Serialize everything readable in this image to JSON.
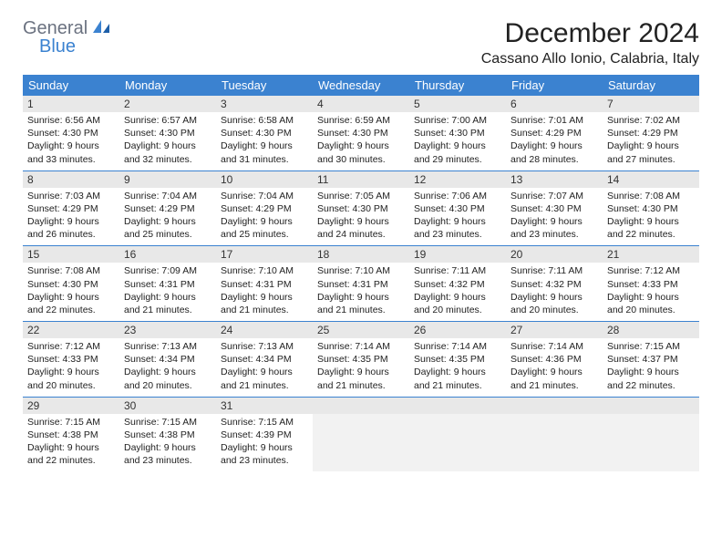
{
  "logo": {
    "general": "General",
    "blue": "Blue"
  },
  "header": {
    "title": "December 2024",
    "location": "Cassano Allo Ionio, Calabria, Italy"
  },
  "colors": {
    "brand_blue": "#3b82d0",
    "header_bg": "#3b82d0",
    "day_num_bg": "#e8e8e8",
    "empty_bg": "#f2f2f2",
    "text": "#222222"
  },
  "weekdays": [
    "Sunday",
    "Monday",
    "Tuesday",
    "Wednesday",
    "Thursday",
    "Friday",
    "Saturday"
  ],
  "weeks": [
    [
      {
        "n": "1",
        "sunrise": "Sunrise: 6:56 AM",
        "sunset": "Sunset: 4:30 PM",
        "day1": "Daylight: 9 hours",
        "day2": "and 33 minutes."
      },
      {
        "n": "2",
        "sunrise": "Sunrise: 6:57 AM",
        "sunset": "Sunset: 4:30 PM",
        "day1": "Daylight: 9 hours",
        "day2": "and 32 minutes."
      },
      {
        "n": "3",
        "sunrise": "Sunrise: 6:58 AM",
        "sunset": "Sunset: 4:30 PM",
        "day1": "Daylight: 9 hours",
        "day2": "and 31 minutes."
      },
      {
        "n": "4",
        "sunrise": "Sunrise: 6:59 AM",
        "sunset": "Sunset: 4:30 PM",
        "day1": "Daylight: 9 hours",
        "day2": "and 30 minutes."
      },
      {
        "n": "5",
        "sunrise": "Sunrise: 7:00 AM",
        "sunset": "Sunset: 4:30 PM",
        "day1": "Daylight: 9 hours",
        "day2": "and 29 minutes."
      },
      {
        "n": "6",
        "sunrise": "Sunrise: 7:01 AM",
        "sunset": "Sunset: 4:29 PM",
        "day1": "Daylight: 9 hours",
        "day2": "and 28 minutes."
      },
      {
        "n": "7",
        "sunrise": "Sunrise: 7:02 AM",
        "sunset": "Sunset: 4:29 PM",
        "day1": "Daylight: 9 hours",
        "day2": "and 27 minutes."
      }
    ],
    [
      {
        "n": "8",
        "sunrise": "Sunrise: 7:03 AM",
        "sunset": "Sunset: 4:29 PM",
        "day1": "Daylight: 9 hours",
        "day2": "and 26 minutes."
      },
      {
        "n": "9",
        "sunrise": "Sunrise: 7:04 AM",
        "sunset": "Sunset: 4:29 PM",
        "day1": "Daylight: 9 hours",
        "day2": "and 25 minutes."
      },
      {
        "n": "10",
        "sunrise": "Sunrise: 7:04 AM",
        "sunset": "Sunset: 4:29 PM",
        "day1": "Daylight: 9 hours",
        "day2": "and 25 minutes."
      },
      {
        "n": "11",
        "sunrise": "Sunrise: 7:05 AM",
        "sunset": "Sunset: 4:30 PM",
        "day1": "Daylight: 9 hours",
        "day2": "and 24 minutes."
      },
      {
        "n": "12",
        "sunrise": "Sunrise: 7:06 AM",
        "sunset": "Sunset: 4:30 PM",
        "day1": "Daylight: 9 hours",
        "day2": "and 23 minutes."
      },
      {
        "n": "13",
        "sunrise": "Sunrise: 7:07 AM",
        "sunset": "Sunset: 4:30 PM",
        "day1": "Daylight: 9 hours",
        "day2": "and 23 minutes."
      },
      {
        "n": "14",
        "sunrise": "Sunrise: 7:08 AM",
        "sunset": "Sunset: 4:30 PM",
        "day1": "Daylight: 9 hours",
        "day2": "and 22 minutes."
      }
    ],
    [
      {
        "n": "15",
        "sunrise": "Sunrise: 7:08 AM",
        "sunset": "Sunset: 4:30 PM",
        "day1": "Daylight: 9 hours",
        "day2": "and 22 minutes."
      },
      {
        "n": "16",
        "sunrise": "Sunrise: 7:09 AM",
        "sunset": "Sunset: 4:31 PM",
        "day1": "Daylight: 9 hours",
        "day2": "and 21 minutes."
      },
      {
        "n": "17",
        "sunrise": "Sunrise: 7:10 AM",
        "sunset": "Sunset: 4:31 PM",
        "day1": "Daylight: 9 hours",
        "day2": "and 21 minutes."
      },
      {
        "n": "18",
        "sunrise": "Sunrise: 7:10 AM",
        "sunset": "Sunset: 4:31 PM",
        "day1": "Daylight: 9 hours",
        "day2": "and 21 minutes."
      },
      {
        "n": "19",
        "sunrise": "Sunrise: 7:11 AM",
        "sunset": "Sunset: 4:32 PM",
        "day1": "Daylight: 9 hours",
        "day2": "and 20 minutes."
      },
      {
        "n": "20",
        "sunrise": "Sunrise: 7:11 AM",
        "sunset": "Sunset: 4:32 PM",
        "day1": "Daylight: 9 hours",
        "day2": "and 20 minutes."
      },
      {
        "n": "21",
        "sunrise": "Sunrise: 7:12 AM",
        "sunset": "Sunset: 4:33 PM",
        "day1": "Daylight: 9 hours",
        "day2": "and 20 minutes."
      }
    ],
    [
      {
        "n": "22",
        "sunrise": "Sunrise: 7:12 AM",
        "sunset": "Sunset: 4:33 PM",
        "day1": "Daylight: 9 hours",
        "day2": "and 20 minutes."
      },
      {
        "n": "23",
        "sunrise": "Sunrise: 7:13 AM",
        "sunset": "Sunset: 4:34 PM",
        "day1": "Daylight: 9 hours",
        "day2": "and 20 minutes."
      },
      {
        "n": "24",
        "sunrise": "Sunrise: 7:13 AM",
        "sunset": "Sunset: 4:34 PM",
        "day1": "Daylight: 9 hours",
        "day2": "and 21 minutes."
      },
      {
        "n": "25",
        "sunrise": "Sunrise: 7:14 AM",
        "sunset": "Sunset: 4:35 PM",
        "day1": "Daylight: 9 hours",
        "day2": "and 21 minutes."
      },
      {
        "n": "26",
        "sunrise": "Sunrise: 7:14 AM",
        "sunset": "Sunset: 4:35 PM",
        "day1": "Daylight: 9 hours",
        "day2": "and 21 minutes."
      },
      {
        "n": "27",
        "sunrise": "Sunrise: 7:14 AM",
        "sunset": "Sunset: 4:36 PM",
        "day1": "Daylight: 9 hours",
        "day2": "and 21 minutes."
      },
      {
        "n": "28",
        "sunrise": "Sunrise: 7:15 AM",
        "sunset": "Sunset: 4:37 PM",
        "day1": "Daylight: 9 hours",
        "day2": "and 22 minutes."
      }
    ],
    [
      {
        "n": "29",
        "sunrise": "Sunrise: 7:15 AM",
        "sunset": "Sunset: 4:38 PM",
        "day1": "Daylight: 9 hours",
        "day2": "and 22 minutes."
      },
      {
        "n": "30",
        "sunrise": "Sunrise: 7:15 AM",
        "sunset": "Sunset: 4:38 PM",
        "day1": "Daylight: 9 hours",
        "day2": "and 23 minutes."
      },
      {
        "n": "31",
        "sunrise": "Sunrise: 7:15 AM",
        "sunset": "Sunset: 4:39 PM",
        "day1": "Daylight: 9 hours",
        "day2": "and 23 minutes."
      },
      null,
      null,
      null,
      null
    ]
  ]
}
